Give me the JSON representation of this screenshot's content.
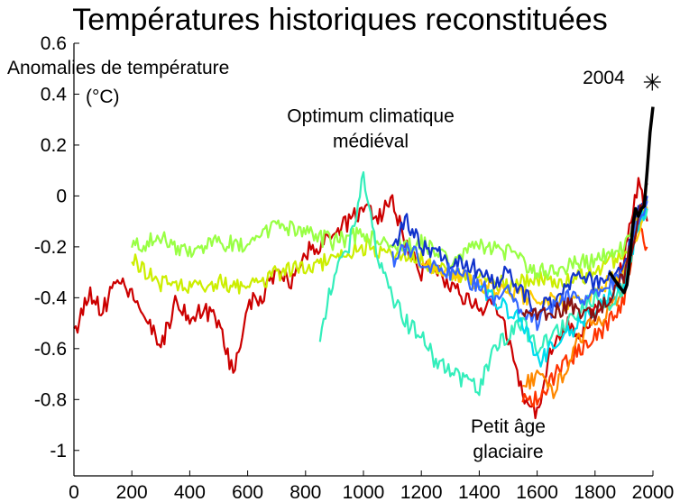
{
  "chart_data": {
    "type": "line",
    "title": "Températures historiques reconstituées",
    "ylabel": [
      "Anomalies de température",
      "(°C)"
    ],
    "xlabel": "",
    "xlim": [
      0,
      2000
    ],
    "ylim": [
      -1.1,
      0.6
    ],
    "xticks": [
      0,
      200,
      400,
      600,
      800,
      1000,
      1200,
      1400,
      1600,
      1800,
      2000
    ],
    "xtick_labels": [
      "0",
      "200",
      "400",
      "600",
      "800",
      "1000",
      "1200",
      "1400",
      "1600",
      "1800",
      "2000"
    ],
    "yticks": [
      0.6,
      0.4,
      0.2,
      0,
      -0.2,
      -0.4,
      -0.6,
      -0.8,
      -1
    ],
    "ytick_labels": [
      "0.6",
      "0.4",
      "0.2",
      "0",
      "-0.2",
      "-0.4",
      "-0.6",
      "-0.8",
      "-1"
    ],
    "grid": false,
    "annotations": [
      {
        "lines": [
          "Optimum climatique",
          "médiéval"
        ],
        "x": 1025,
        "y": 0.29
      },
      {
        "lines": [
          "Petit âge",
          "glaciaire"
        ],
        "x": 1500,
        "y": -0.93
      },
      {
        "lines": [
          "2004"
        ],
        "x": 1830,
        "y": 0.44
      }
    ],
    "marker": {
      "x": 2004,
      "y": 0.45,
      "symbol": "✳"
    },
    "series": [
      {
        "color": "#cc0000",
        "x": [
          0,
          50,
          100,
          150,
          200,
          250,
          300,
          350,
          400,
          450,
          500,
          550,
          600,
          650,
          700,
          750,
          800,
          850,
          900,
          950,
          1000,
          1050,
          1100,
          1150,
          1200,
          1250,
          1300,
          1350,
          1400,
          1450,
          1500,
          1550,
          1600,
          1650,
          1700,
          1750,
          1800,
          1850,
          1900,
          1950,
          1980
        ],
        "values": [
          -0.55,
          -0.38,
          -0.45,
          -0.33,
          -0.4,
          -0.48,
          -0.6,
          -0.42,
          -0.48,
          -0.45,
          -0.5,
          -0.7,
          -0.42,
          -0.4,
          -0.28,
          -0.35,
          -0.22,
          -0.2,
          -0.15,
          -0.1,
          -0.05,
          -0.08,
          -0.02,
          -0.2,
          -0.3,
          -0.28,
          -0.35,
          -0.4,
          -0.45,
          -0.4,
          -0.55,
          -0.78,
          -0.85,
          -0.6,
          -0.5,
          -0.55,
          -0.45,
          -0.42,
          -0.25,
          0.05,
          -0.1
        ]
      },
      {
        "color": "#ff3300",
        "x": [
          1550,
          1600,
          1650,
          1700,
          1750,
          1800,
          1850,
          1900,
          1950,
          1980
        ],
        "values": [
          -0.78,
          -0.8,
          -0.72,
          -0.65,
          -0.6,
          -0.55,
          -0.5,
          -0.4,
          -0.1,
          -0.2
        ]
      },
      {
        "color": "#ff8800",
        "x": [
          1550,
          1600,
          1650,
          1700,
          1750,
          1800,
          1850,
          1900,
          1950,
          1980
        ],
        "values": [
          -0.75,
          -0.7,
          -0.78,
          -0.68,
          -0.55,
          -0.5,
          -0.45,
          -0.35,
          -0.05,
          -0.02
        ]
      },
      {
        "color": "#ccee00",
        "x": [
          200,
          300,
          400,
          500,
          600,
          700,
          800,
          900,
          1000,
          1100,
          1200,
          1300,
          1400,
          1500,
          1600,
          1700,
          1800,
          1900,
          1980
        ],
        "values": [
          -0.25,
          -0.34,
          -0.36,
          -0.34,
          -0.37,
          -0.3,
          -0.28,
          -0.25,
          -0.2,
          -0.22,
          -0.25,
          -0.3,
          -0.32,
          -0.35,
          -0.33,
          -0.34,
          -0.3,
          -0.22,
          -0.05
        ]
      },
      {
        "color": "#99ff44",
        "x": [
          200,
          300,
          400,
          500,
          600,
          700,
          800,
          900,
          1000,
          1100,
          1200,
          1300,
          1400,
          1500,
          1600,
          1700,
          1800,
          1900,
          1980
        ],
        "values": [
          -0.2,
          -0.17,
          -0.22,
          -0.18,
          -0.2,
          -0.12,
          -0.15,
          -0.18,
          -0.15,
          -0.2,
          -0.18,
          -0.25,
          -0.2,
          -0.22,
          -0.3,
          -0.28,
          -0.25,
          -0.2,
          -0.02
        ]
      },
      {
        "color": "#ffcc00",
        "x": [
          1200,
          1300,
          1400,
          1500,
          1600,
          1700,
          1800,
          1900,
          1980
        ],
        "values": [
          -0.28,
          -0.3,
          -0.35,
          -0.38,
          -0.4,
          -0.42,
          -0.38,
          -0.3,
          -0.05
        ]
      },
      {
        "color": "#33eebb",
        "x": [
          850,
          900,
          950,
          1000,
          1050,
          1100,
          1150,
          1200,
          1250,
          1300,
          1350,
          1400,
          1450,
          1500,
          1550,
          1600,
          1650,
          1700,
          1750,
          1800,
          1850,
          1900,
          1950,
          1980
        ],
        "values": [
          -0.55,
          -0.3,
          -0.2,
          0.08,
          -0.25,
          -0.4,
          -0.5,
          -0.55,
          -0.65,
          -0.7,
          -0.72,
          -0.75,
          -0.6,
          -0.55,
          -0.5,
          -0.6,
          -0.55,
          -0.5,
          -0.45,
          -0.4,
          -0.42,
          -0.35,
          -0.1,
          -0.05
        ]
      },
      {
        "color": "#00ddee",
        "x": [
          1400,
          1450,
          1500,
          1550,
          1600,
          1650,
          1700,
          1750,
          1800,
          1850,
          1900,
          1950,
          1980
        ],
        "values": [
          -0.35,
          -0.4,
          -0.45,
          -0.5,
          -0.65,
          -0.6,
          -0.55,
          -0.5,
          -0.45,
          -0.4,
          -0.35,
          -0.1,
          -0.05
        ]
      },
      {
        "color": "#1133cc",
        "x": [
          1100,
          1150,
          1200,
          1250,
          1300,
          1350,
          1400,
          1450,
          1500,
          1550,
          1600,
          1650,
          1700,
          1750,
          1800,
          1850,
          1900,
          1950,
          1980
        ],
        "values": [
          -0.2,
          -0.1,
          -0.2,
          -0.22,
          -0.28,
          -0.25,
          -0.3,
          -0.35,
          -0.3,
          -0.38,
          -0.45,
          -0.42,
          -0.35,
          -0.3,
          -0.35,
          -0.32,
          -0.28,
          -0.05,
          0.0
        ]
      },
      {
        "color": "#3366ff",
        "x": [
          1100,
          1150,
          1200,
          1250,
          1300,
          1350,
          1400,
          1450,
          1500,
          1550,
          1600,
          1650,
          1700,
          1750,
          1800,
          1850,
          1900,
          1950,
          1980
        ],
        "values": [
          -0.25,
          -0.2,
          -0.25,
          -0.28,
          -0.3,
          -0.32,
          -0.35,
          -0.4,
          -0.38,
          -0.45,
          -0.5,
          -0.45,
          -0.4,
          -0.42,
          -0.4,
          -0.35,
          -0.3,
          -0.08,
          -0.02
        ]
      },
      {
        "color": "#881111",
        "x": [
          1550,
          1600,
          1650,
          1700,
          1750,
          1800,
          1850,
          1900,
          1950,
          1980
        ],
        "values": [
          -0.48,
          -0.47,
          -0.46,
          -0.43,
          -0.45,
          -0.46,
          -0.4,
          -0.32,
          -0.08,
          0.05
        ]
      },
      {
        "color": "#000000",
        "x": [
          1850,
          1880,
          1900,
          1910,
          1920,
          1930,
          1940,
          1950,
          1960,
          1970,
          1980,
          1990,
          2000
        ],
        "values": [
          -0.3,
          -0.35,
          -0.38,
          -0.35,
          -0.25,
          -0.12,
          -0.05,
          -0.08,
          -0.05,
          -0.04,
          0.1,
          0.25,
          0.35
        ]
      }
    ]
  }
}
